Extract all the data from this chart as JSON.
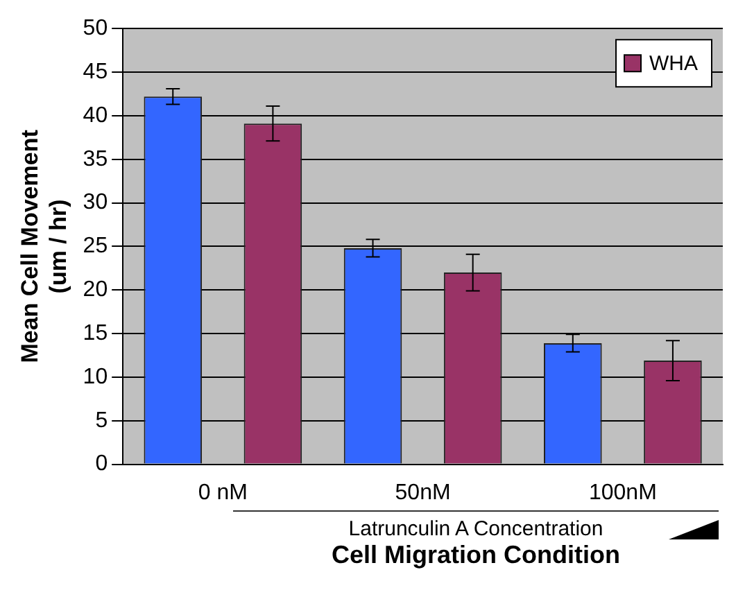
{
  "chart_data": {
    "type": "bar",
    "ylabel": "Mean Cell Movement\n(um / hr)",
    "xlabel": "Cell Migration Condition",
    "annotations": [
      "Latrunculin A Concentration"
    ],
    "categories": [
      "0 nM",
      "50nM",
      "100nM"
    ],
    "series": [
      {
        "color": "#3366ff",
        "values": [
          42.2,
          24.8,
          13.9
        ],
        "errors": [
          0.9,
          1,
          1
        ]
      },
      {
        "name": "WHA",
        "color": "#993366",
        "values": [
          39.1,
          22,
          11.9
        ],
        "errors": [
          2,
          2.1,
          2.3
        ]
      }
    ],
    "ylim": [
      0,
      50
    ],
    "yticks": [
      0,
      5,
      10,
      15,
      20,
      25,
      30,
      35,
      40,
      45,
      50
    ],
    "grid": "y",
    "legend": "top right"
  }
}
